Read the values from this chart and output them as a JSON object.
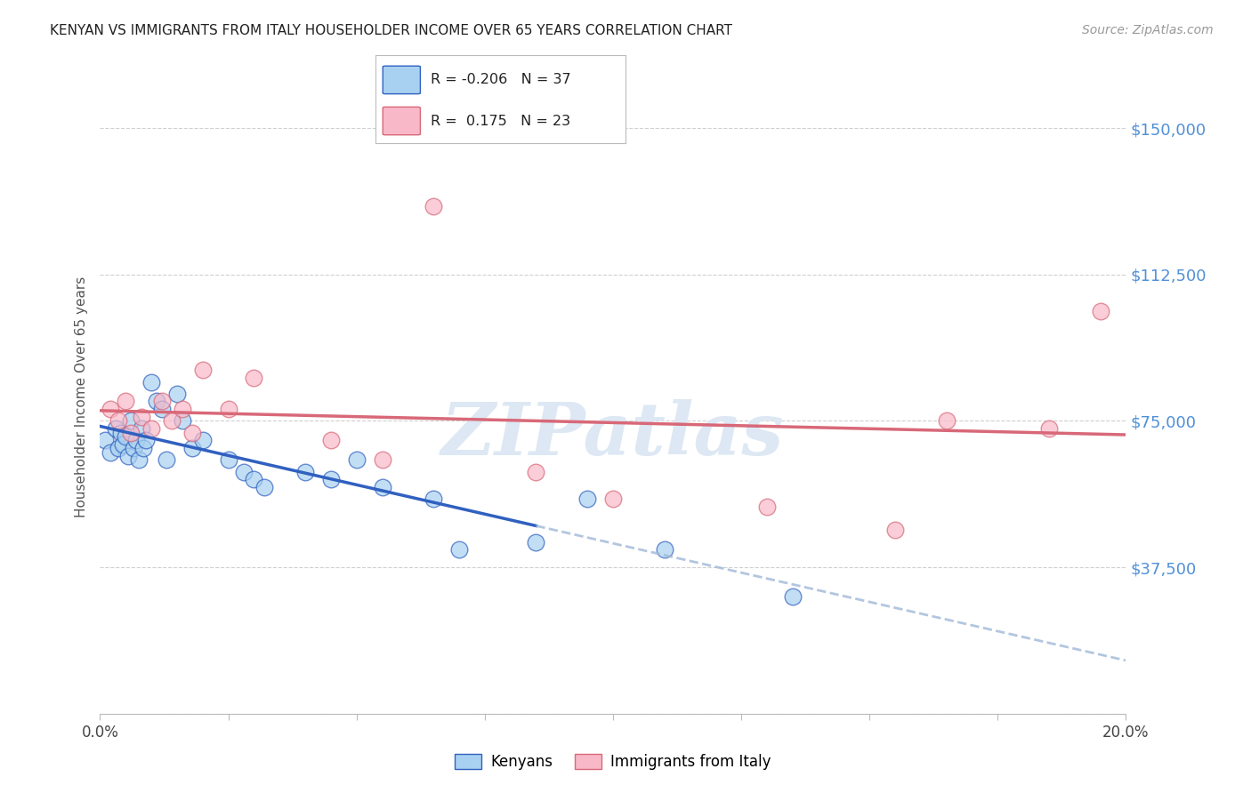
{
  "title": "KENYAN VS IMMIGRANTS FROM ITALY HOUSEHOLDER INCOME OVER 65 YEARS CORRELATION CHART",
  "source": "Source: ZipAtlas.com",
  "ylabel": "Householder Income Over 65 years",
  "legend_label1": "Kenyans",
  "legend_label2": "Immigrants from Italy",
  "xlim": [
    0.0,
    20.0
  ],
  "ylim": [
    0,
    162500
  ],
  "yticks": [
    0,
    37500,
    75000,
    112500,
    150000
  ],
  "ytick_labels": [
    "",
    "$37,500",
    "$75,000",
    "$112,500",
    "$150,000"
  ],
  "xticks": [
    0.0,
    2.5,
    5.0,
    7.5,
    10.0,
    12.5,
    15.0,
    17.5,
    20.0
  ],
  "xtick_labels": [
    "0.0%",
    "",
    "",
    "",
    "",
    "",
    "",
    "",
    "20.0%"
  ],
  "kenyan_x": [
    0.1,
    0.2,
    0.3,
    0.35,
    0.4,
    0.45,
    0.5,
    0.55,
    0.6,
    0.65,
    0.7,
    0.75,
    0.8,
    0.85,
    0.9,
    1.0,
    1.1,
    1.2,
    1.3,
    1.5,
    1.6,
    1.8,
    2.0,
    2.5,
    2.8,
    3.0,
    3.2,
    4.0,
    4.5,
    5.0,
    5.5,
    6.5,
    7.0,
    8.5,
    9.5,
    11.0,
    13.5
  ],
  "kenyan_y": [
    70000,
    67000,
    73000,
    68000,
    72000,
    69000,
    71000,
    66000,
    75000,
    68000,
    70000,
    65000,
    73000,
    68000,
    70000,
    85000,
    80000,
    78000,
    65000,
    82000,
    75000,
    68000,
    70000,
    65000,
    62000,
    60000,
    58000,
    62000,
    60000,
    65000,
    58000,
    55000,
    42000,
    44000,
    55000,
    42000,
    30000
  ],
  "italy_x": [
    0.2,
    0.35,
    0.5,
    0.6,
    0.8,
    1.0,
    1.2,
    1.4,
    1.6,
    1.8,
    2.0,
    2.5,
    3.0,
    4.5,
    5.5,
    6.5,
    8.5,
    10.0,
    13.0,
    15.5,
    16.5,
    18.5,
    19.5
  ],
  "italy_y": [
    78000,
    75000,
    80000,
    72000,
    76000,
    73000,
    80000,
    75000,
    78000,
    72000,
    88000,
    78000,
    86000,
    70000,
    65000,
    130000,
    62000,
    55000,
    53000,
    47000,
    75000,
    73000,
    103000
  ],
  "blue_color": "#a8d0f0",
  "pink_color": "#f8b8c8",
  "blue_line_color": "#3060c0",
  "pink_line_color": "#d86878",
  "watermark_text": "ZIPatlas",
  "bg_color": "#ffffff",
  "grid_color": "#d0d0d0",
  "title_color": "#222222",
  "source_color": "#999999",
  "right_tick_color": "#5090d8"
}
